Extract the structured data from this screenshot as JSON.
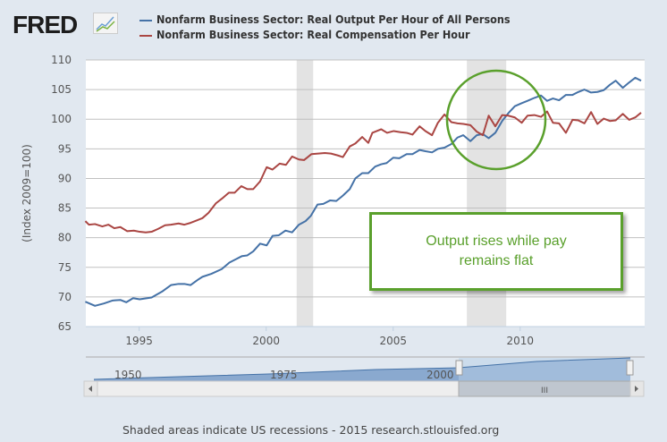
{
  "logo": "FRED",
  "footer": "Shaded areas indicate US recessions - 2015 research.stlouisfed.org",
  "annotation": "Output rises while pay remains flat",
  "navigator": {
    "labels": [
      "1950",
      "1975",
      "2000"
    ],
    "scroll_grip": "III"
  },
  "chart_data": {
    "type": "line",
    "title": "",
    "xlabel": "",
    "ylabel": "(Index 2009=100)",
    "xlim": [
      1992.9,
      2014.9
    ],
    "ylim": [
      65,
      110
    ],
    "yticks": [
      65,
      70,
      75,
      80,
      85,
      90,
      95,
      100,
      105,
      110
    ],
    "xticks": [
      1995,
      2000,
      2005,
      2010
    ],
    "grid": true,
    "legend": "top",
    "recessions": [
      [
        2001.2,
        2001.85
      ],
      [
        2007.9,
        2009.45
      ]
    ],
    "series": [
      {
        "name": "Nonfarm Business Sector: Real Output Per Hour of All Persons",
        "color": "#4572a7",
        "points": [
          [
            1992.88,
            69.2
          ],
          [
            1993.26,
            68.5
          ],
          [
            1993.61,
            68.9
          ],
          [
            1993.96,
            69.4
          ],
          [
            1994.26,
            69.5
          ],
          [
            1994.49,
            69.1
          ],
          [
            1994.76,
            69.8
          ],
          [
            1995.02,
            69.6
          ],
          [
            1995.49,
            69.9
          ],
          [
            1995.9,
            70.9
          ],
          [
            1996.25,
            72.0
          ],
          [
            1996.55,
            72.2
          ],
          [
            1996.78,
            72.2
          ],
          [
            1997.02,
            72.0
          ],
          [
            1997.31,
            72.9
          ],
          [
            1997.49,
            73.4
          ],
          [
            1997.84,
            73.9
          ],
          [
            1998.25,
            74.7
          ],
          [
            1998.55,
            75.8
          ],
          [
            1998.78,
            76.3
          ],
          [
            1999.05,
            76.9
          ],
          [
            1999.25,
            77.0
          ],
          [
            1999.49,
            77.7
          ],
          [
            1999.76,
            79.0
          ],
          [
            2000.02,
            78.7
          ],
          [
            2000.25,
            80.3
          ],
          [
            2000.49,
            80.4
          ],
          [
            2000.76,
            81.2
          ],
          [
            2001.02,
            80.9
          ],
          [
            2001.29,
            82.2
          ],
          [
            2001.55,
            82.8
          ],
          [
            2001.76,
            83.7
          ],
          [
            2002.02,
            85.6
          ],
          [
            2002.25,
            85.7
          ],
          [
            2002.52,
            86.3
          ],
          [
            2002.76,
            86.2
          ],
          [
            2003.02,
            87.1
          ],
          [
            2003.29,
            88.2
          ],
          [
            2003.51,
            90.0
          ],
          [
            2003.78,
            90.9
          ],
          [
            2004.02,
            90.9
          ],
          [
            2004.29,
            92.0
          ],
          [
            2004.53,
            92.4
          ],
          [
            2004.74,
            92.6
          ],
          [
            2005.0,
            93.5
          ],
          [
            2005.24,
            93.4
          ],
          [
            2005.53,
            94.1
          ],
          [
            2005.76,
            94.1
          ],
          [
            2006.04,
            94.8
          ],
          [
            2006.27,
            94.6
          ],
          [
            2006.53,
            94.4
          ],
          [
            2006.76,
            95.0
          ],
          [
            2007.02,
            95.2
          ],
          [
            2007.29,
            95.8
          ],
          [
            2007.53,
            96.9
          ],
          [
            2007.76,
            97.3
          ],
          [
            2008.04,
            96.3
          ],
          [
            2008.29,
            97.3
          ],
          [
            2008.53,
            97.5
          ],
          [
            2008.76,
            96.8
          ],
          [
            2009.02,
            97.7
          ],
          [
            2009.29,
            99.7
          ],
          [
            2009.53,
            101.0
          ],
          [
            2009.79,
            102.2
          ],
          [
            2010.06,
            102.7
          ],
          [
            2010.29,
            103.1
          ],
          [
            2010.56,
            103.6
          ],
          [
            2010.82,
            104.0
          ],
          [
            2011.06,
            103.1
          ],
          [
            2011.29,
            103.5
          ],
          [
            2011.53,
            103.2
          ],
          [
            2011.8,
            104.1
          ],
          [
            2012.06,
            104.1
          ],
          [
            2012.29,
            104.6
          ],
          [
            2012.53,
            105.0
          ],
          [
            2012.79,
            104.5
          ],
          [
            2013.04,
            104.6
          ],
          [
            2013.29,
            104.9
          ],
          [
            2013.53,
            105.8
          ],
          [
            2013.76,
            106.5
          ],
          [
            2014.04,
            105.3
          ],
          [
            2014.29,
            106.2
          ],
          [
            2014.53,
            107.0
          ],
          [
            2014.76,
            106.5
          ]
        ]
      },
      {
        "name": "Nonfarm Business Sector: Real Compensation Per Hour",
        "color": "#aa4643",
        "points": [
          [
            1992.88,
            82.8
          ],
          [
            1993.02,
            82.2
          ],
          [
            1993.26,
            82.3
          ],
          [
            1993.55,
            81.9
          ],
          [
            1993.79,
            82.2
          ],
          [
            1994.02,
            81.6
          ],
          [
            1994.26,
            81.8
          ],
          [
            1994.53,
            81.1
          ],
          [
            1994.79,
            81.2
          ],
          [
            1995.02,
            81.0
          ],
          [
            1995.26,
            80.9
          ],
          [
            1995.49,
            81.0
          ],
          [
            1995.75,
            81.5
          ],
          [
            1996.02,
            82.1
          ],
          [
            1996.25,
            82.2
          ],
          [
            1996.55,
            82.4
          ],
          [
            1996.78,
            82.2
          ],
          [
            1997.02,
            82.5
          ],
          [
            1997.26,
            82.9
          ],
          [
            1997.49,
            83.3
          ],
          [
            1997.73,
            84.2
          ],
          [
            1998.02,
            85.8
          ],
          [
            1998.26,
            86.6
          ],
          [
            1998.53,
            87.6
          ],
          [
            1998.76,
            87.6
          ],
          [
            1999.02,
            88.7
          ],
          [
            1999.26,
            88.2
          ],
          [
            1999.49,
            88.2
          ],
          [
            1999.76,
            89.5
          ],
          [
            2000.02,
            91.9
          ],
          [
            2000.25,
            91.5
          ],
          [
            2000.53,
            92.5
          ],
          [
            2000.78,
            92.3
          ],
          [
            2001.02,
            93.7
          ],
          [
            2001.29,
            93.2
          ],
          [
            2001.49,
            93.1
          ],
          [
            2001.78,
            94.1
          ],
          [
            2002.05,
            94.2
          ],
          [
            2002.31,
            94.3
          ],
          [
            2002.55,
            94.2
          ],
          [
            2002.81,
            93.9
          ],
          [
            2003.02,
            93.6
          ],
          [
            2003.29,
            95.4
          ],
          [
            2003.51,
            95.9
          ],
          [
            2003.78,
            97.0
          ],
          [
            2004.02,
            96.0
          ],
          [
            2004.18,
            97.7
          ],
          [
            2004.53,
            98.3
          ],
          [
            2004.76,
            97.7
          ],
          [
            2005.02,
            98.0
          ],
          [
            2005.29,
            97.8
          ],
          [
            2005.53,
            97.7
          ],
          [
            2005.76,
            97.4
          ],
          [
            2006.04,
            98.8
          ],
          [
            2006.27,
            98.0
          ],
          [
            2006.53,
            97.3
          ],
          [
            2006.76,
            99.4
          ],
          [
            2007.02,
            100.8
          ],
          [
            2007.29,
            99.5
          ],
          [
            2007.53,
            99.3
          ],
          [
            2007.76,
            99.2
          ],
          [
            2008.04,
            99.0
          ],
          [
            2008.29,
            97.9
          ],
          [
            2008.53,
            97.3
          ],
          [
            2008.76,
            100.6
          ],
          [
            2009.02,
            98.8
          ],
          [
            2009.29,
            100.7
          ],
          [
            2009.53,
            100.6
          ],
          [
            2009.79,
            100.3
          ],
          [
            2010.06,
            99.4
          ],
          [
            2010.29,
            100.6
          ],
          [
            2010.56,
            100.7
          ],
          [
            2010.82,
            100.4
          ],
          [
            2011.06,
            101.3
          ],
          [
            2011.29,
            99.4
          ],
          [
            2011.53,
            99.3
          ],
          [
            2011.8,
            97.7
          ],
          [
            2012.06,
            99.9
          ],
          [
            2012.29,
            99.8
          ],
          [
            2012.53,
            99.3
          ],
          [
            2012.79,
            101.2
          ],
          [
            2013.04,
            99.2
          ],
          [
            2013.29,
            100.1
          ],
          [
            2013.53,
            99.7
          ],
          [
            2013.76,
            99.8
          ],
          [
            2014.04,
            100.9
          ],
          [
            2014.29,
            99.9
          ],
          [
            2014.53,
            100.3
          ],
          [
            2014.76,
            101.1
          ]
        ]
      }
    ]
  }
}
